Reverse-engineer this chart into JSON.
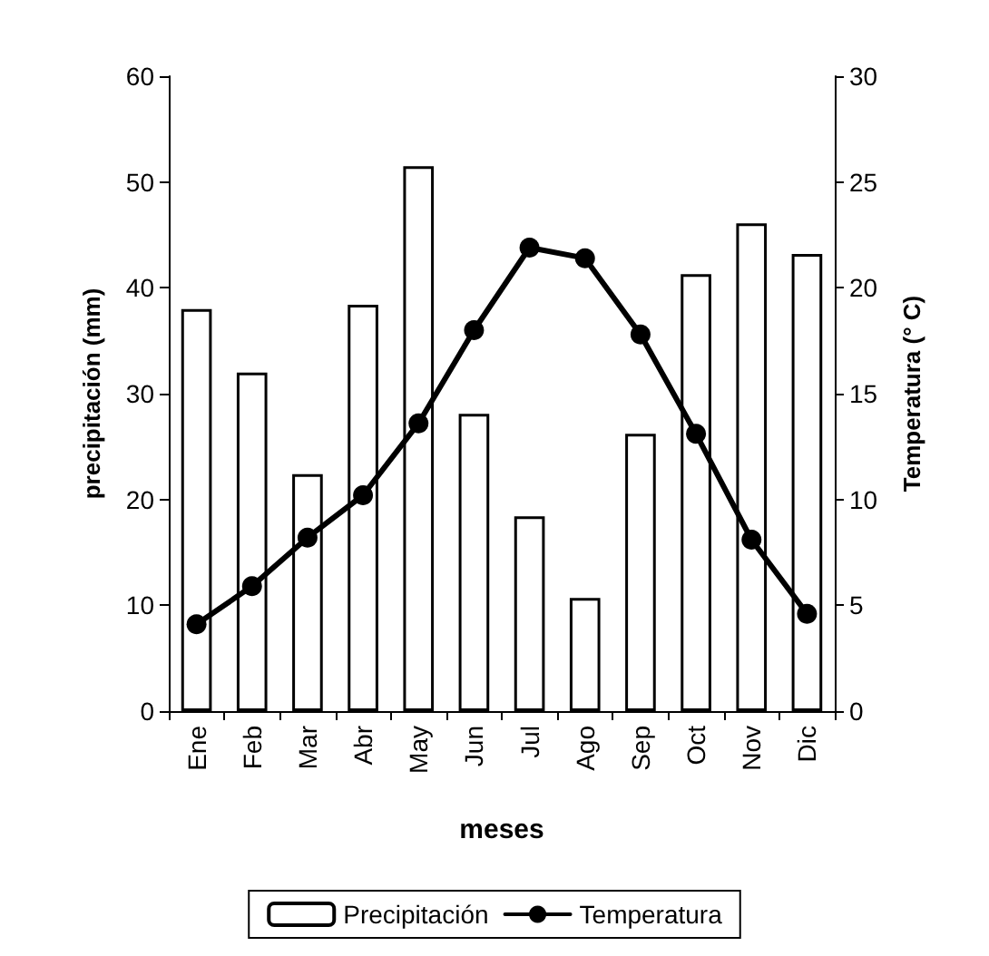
{
  "chart_data": {
    "type": "bar",
    "xlabel": "meses",
    "ylabel": "precipitación (mm)",
    "y2label": "Temperatura (° C)",
    "categories": [
      "Ene",
      "Feb",
      "Mar",
      "Abr",
      "May",
      "Jun",
      "Jul",
      "Ago",
      "Sep",
      "Oct",
      "Nov",
      "Dic"
    ],
    "series": [
      {
        "name": "Precipitación",
        "color": "#ffffff",
        "values": [
          38,
          32,
          22.4,
          38.4,
          51.5,
          28.1,
          18.4,
          10.7,
          26.2,
          41.3,
          46.1,
          43.2
        ]
      },
      {
        "name": "Temperatura",
        "type": "line",
        "axis": "y2",
        "color": "#000000",
        "marker": "circle",
        "line_style": "solid",
        "values": [
          4.1,
          5.9,
          8.2,
          10.2,
          13.6,
          18,
          21.9,
          21.4,
          17.8,
          13.1,
          8.1,
          4.6
        ]
      }
    ],
    "ylim": [
      0,
      60
    ],
    "yticks": [
      0,
      10,
      20,
      30,
      40,
      50,
      60
    ],
    "y2lim": [
      0,
      30
    ],
    "y2ticks": [
      0,
      5,
      10,
      15,
      20,
      25,
      30
    ],
    "grid": false,
    "legend": "bottom"
  }
}
